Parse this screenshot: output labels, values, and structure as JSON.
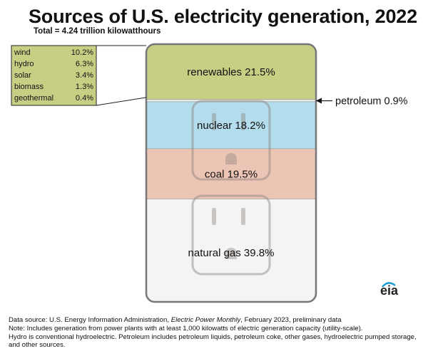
{
  "title": "Sources of U.S. electricity generation, 2022",
  "subtitle": "Total = 4.24 trillion kilowatthours",
  "colors": {
    "renewables": "#c7cf85",
    "petroleum": "#e8e8e8",
    "nuclear": "#b3dcec",
    "coal": "#ecc5b5",
    "natural_gas": "#f4f4f4",
    "frame": "#777777",
    "outlet": "#8a7f7b",
    "inset_bg": "#c7cf85",
    "eia_accent": "#1a9ad6"
  },
  "chart_data": {
    "type": "bar",
    "variant": "stacked-100-percent",
    "title": "Sources of U.S. electricity generation, 2022",
    "subtitle": "Total = 4.24 trillion kilowatthours",
    "unit": "percent",
    "segments": [
      {
        "key": "renewables",
        "name": "renewables",
        "value": 21.5,
        "label": "renewables 21.5%"
      },
      {
        "key": "petroleum",
        "name": "petroleum",
        "value": 0.9,
        "label": "petroleum 0.9%"
      },
      {
        "key": "nuclear",
        "name": "nuclear",
        "value": 18.2,
        "label": "nuclear 18.2%"
      },
      {
        "key": "coal",
        "name": "coal",
        "value": 19.5,
        "label": "coal 19.5%"
      },
      {
        "key": "natural_gas",
        "name": "natural gas",
        "value": 39.8,
        "label": "natural gas 39.8%"
      }
    ],
    "renewables_breakdown": [
      {
        "name": "wind",
        "value": 10.2,
        "value_label": "10.2%"
      },
      {
        "name": "hydro",
        "value": 6.3,
        "value_label": "6.3%"
      },
      {
        "name": "solar",
        "value": 3.4,
        "value_label": "3.4%"
      },
      {
        "name": "biomass",
        "value": 1.3,
        "value_label": "1.3%"
      },
      {
        "name": "geothermal",
        "value": 0.4,
        "value_label": "0.4%"
      }
    ]
  },
  "logo_text": "eia",
  "footer": {
    "source_prefix": "Data source: U.S. Energy Information Administration, ",
    "source_title": "Electric Power Monthly",
    "source_suffix": ", February 2023, preliminary data",
    "note_line1": "Note: Includes generation from power plants with at least 1,000 kilowatts of electric generation capacity (utility-scale).",
    "note_line2": "Hydro is conventional hydroelectric. Petroleum includes petroleum liquids, petroleum coke, other gases, hydroelectric pumped storage, and other sources."
  }
}
